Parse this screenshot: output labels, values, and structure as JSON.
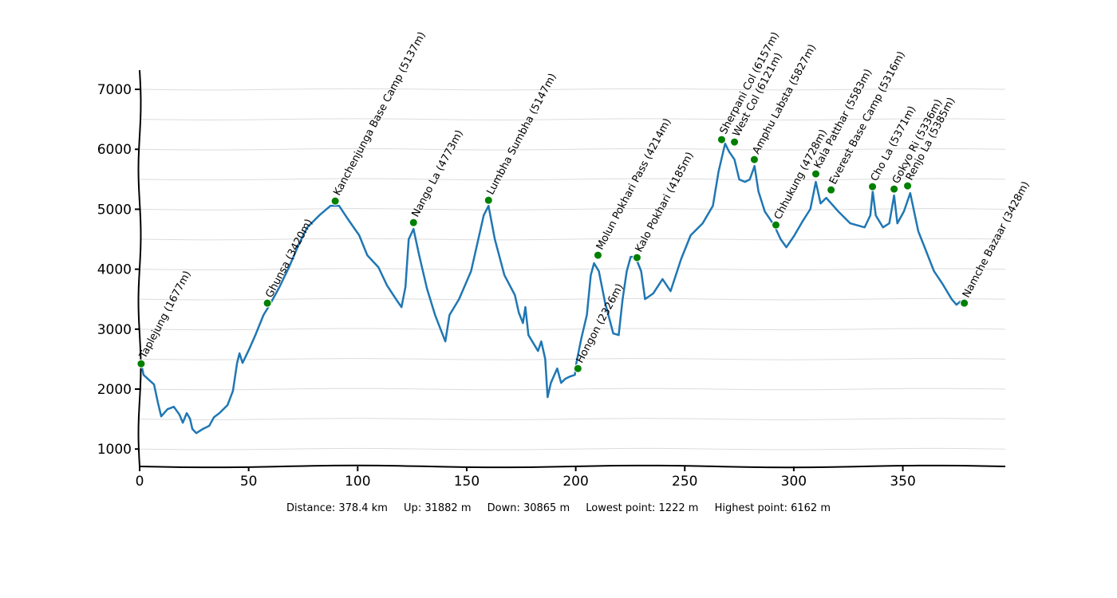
{
  "chart_data": {
    "type": "line",
    "title": "",
    "xlabel": "",
    "ylabel": "",
    "xlim": [
      0,
      397
    ],
    "ylim": [
      710,
      7320
    ],
    "x_ticks": [
      0,
      50,
      100,
      150,
      200,
      250,
      300,
      350
    ],
    "y_ticks": [
      1000,
      2000,
      3000,
      4000,
      5000,
      6000,
      7000
    ],
    "grid": "horizontal every 500 m",
    "line_color": "#1f77b4",
    "marker_color": "#008000",
    "series": [
      {
        "points": [
          [
            0.7,
            2423
          ],
          [
            1.8,
            2237
          ],
          [
            6.6,
            2078
          ],
          [
            8.4,
            1772
          ],
          [
            9.9,
            1545
          ],
          [
            12.8,
            1665
          ],
          [
            15.7,
            1705
          ],
          [
            18.3,
            1572
          ],
          [
            19.8,
            1439
          ],
          [
            21.6,
            1599
          ],
          [
            23.1,
            1506
          ],
          [
            24.2,
            1333
          ],
          [
            26,
            1266
          ],
          [
            28.9,
            1333
          ],
          [
            31.9,
            1386
          ],
          [
            34.1,
            1532
          ],
          [
            36.6,
            1599
          ],
          [
            40.3,
            1732
          ],
          [
            42.8,
            1971
          ],
          [
            44.7,
            2437
          ],
          [
            45.8,
            2596
          ],
          [
            47.2,
            2437
          ],
          [
            50.2,
            2663
          ],
          [
            53.1,
            2902
          ],
          [
            56.8,
            3235
          ],
          [
            59.7,
            3408
          ],
          [
            64.1,
            3701
          ],
          [
            68.5,
            4033
          ],
          [
            73.2,
            4432
          ],
          [
            76.9,
            4698
          ],
          [
            82.4,
            4898
          ],
          [
            87.5,
            5057
          ],
          [
            91.5,
            5057
          ],
          [
            95.6,
            4831
          ],
          [
            100.7,
            4565
          ],
          [
            104.4,
            4233
          ],
          [
            109.5,
            4033
          ],
          [
            113.5,
            3727
          ],
          [
            118.3,
            3461
          ],
          [
            120.1,
            3368
          ],
          [
            121.9,
            3701
          ],
          [
            123.4,
            4499
          ],
          [
            125.6,
            4672
          ],
          [
            128.2,
            4233
          ],
          [
            131.8,
            3674
          ],
          [
            135.5,
            3235
          ],
          [
            140.2,
            2796
          ],
          [
            142.1,
            3235
          ],
          [
            146.5,
            3501
          ],
          [
            152,
            3967
          ],
          [
            154.9,
            4432
          ],
          [
            157.8,
            4898
          ],
          [
            160,
            5057
          ],
          [
            162.9,
            4499
          ],
          [
            167.3,
            3900
          ],
          [
            172.1,
            3568
          ],
          [
            173.9,
            3275
          ],
          [
            175.8,
            3102
          ],
          [
            176.9,
            3368
          ],
          [
            178.3,
            2902
          ],
          [
            180.5,
            2769
          ],
          [
            182.7,
            2636
          ],
          [
            184.2,
            2796
          ],
          [
            186,
            2503
          ],
          [
            187.1,
            1865
          ],
          [
            188.6,
            2104
          ],
          [
            191.5,
            2344
          ],
          [
            193.3,
            2104
          ],
          [
            195.2,
            2171
          ],
          [
            197.4,
            2211
          ],
          [
            199.6,
            2237
          ],
          [
            200.3,
            2437
          ],
          [
            202.5,
            2836
          ],
          [
            205.1,
            3235
          ],
          [
            206.9,
            3900
          ],
          [
            208.4,
            4100
          ],
          [
            210.6,
            3967
          ],
          [
            213.5,
            3435
          ],
          [
            215,
            3235
          ],
          [
            217.2,
            2929
          ],
          [
            219.7,
            2902
          ],
          [
            221.5,
            3501
          ],
          [
            223.4,
            3967
          ],
          [
            225.2,
            4206
          ],
          [
            227.4,
            4206
          ],
          [
            230,
            3967
          ],
          [
            231.8,
            3501
          ],
          [
            235.5,
            3594
          ],
          [
            239.8,
            3834
          ],
          [
            243.5,
            3634
          ],
          [
            248.3,
            4166
          ],
          [
            252.7,
            4565
          ],
          [
            258.2,
            4765
          ],
          [
            262.9,
            5057
          ],
          [
            265.5,
            5629
          ],
          [
            268.5,
            6095
          ],
          [
            270.3,
            5962
          ],
          [
            272.8,
            5829
          ],
          [
            275,
            5496
          ],
          [
            277.6,
            5456
          ],
          [
            279.8,
            5496
          ],
          [
            282,
            5722
          ],
          [
            283.8,
            5297
          ],
          [
            286.7,
            4964
          ],
          [
            291.1,
            4725
          ],
          [
            294,
            4499
          ],
          [
            296.6,
            4366
          ],
          [
            300.3,
            4565
          ],
          [
            303.9,
            4791
          ],
          [
            307.6,
            5004
          ],
          [
            310.1,
            5456
          ],
          [
            312.3,
            5097
          ],
          [
            314.9,
            5190
          ],
          [
            320.4,
            4964
          ],
          [
            325.9,
            4765
          ],
          [
            332.5,
            4698
          ],
          [
            335.1,
            4898
          ],
          [
            336.2,
            5297
          ],
          [
            337.6,
            4898
          ],
          [
            340.9,
            4698
          ],
          [
            343.8,
            4765
          ],
          [
            346,
            5230
          ],
          [
            347.5,
            4765
          ],
          [
            350.5,
            4964
          ],
          [
            353.4,
            5270
          ],
          [
            357.1,
            4632
          ],
          [
            360,
            4366
          ],
          [
            364.3,
            3967
          ],
          [
            368,
            3767
          ],
          [
            372.4,
            3501
          ],
          [
            374.6,
            3408
          ],
          [
            376.4,
            3461
          ],
          [
            378.2,
            3434
          ]
        ]
      }
    ],
    "waypoints": [
      {
        "label": "Taplejung (1677m)",
        "x": 0.7,
        "y": 2423
      },
      {
        "label": "Ghunsa (3420m)",
        "x": 58.6,
        "y": 3434
      },
      {
        "label": "Kanchenjunga Base Camp (5137m)",
        "x": 89.7,
        "y": 5137
      },
      {
        "label": "Nango La (4773m)",
        "x": 125.6,
        "y": 4778
      },
      {
        "label": "Lumbha Sumbha (5147m)",
        "x": 160,
        "y": 5150
      },
      {
        "label": "Hongon (2326m)",
        "x": 201,
        "y": 2343
      },
      {
        "label": "Molun Pokhari Pass (4214m)",
        "x": 210.2,
        "y": 4233
      },
      {
        "label": "Kalo Pokhari (4185m)",
        "x": 228.1,
        "y": 4193
      },
      {
        "label": "Sherpani Col (6157m)",
        "x": 266.9,
        "y": 6162
      },
      {
        "label": "West Col (6121m)",
        "x": 272.8,
        "y": 6122
      },
      {
        "label": "Amphu Labsta (5827m)",
        "x": 281.9,
        "y": 5829
      },
      {
        "label": "Chhukung (4728m)",
        "x": 291.8,
        "y": 4738
      },
      {
        "label": "Kala Patthar (5583m)",
        "x": 310.1,
        "y": 5590
      },
      {
        "label": "Everest Base Camp (5316m)",
        "x": 317.1,
        "y": 5323
      },
      {
        "label": "Cho La (5371m)",
        "x": 336.1,
        "y": 5377
      },
      {
        "label": "Gokyo Ri (5336m)",
        "x": 346,
        "y": 5337
      },
      {
        "label": "Renjo La (5385m)",
        "x": 352.2,
        "y": 5390
      },
      {
        "label": "Namche Bazaar (3428m)",
        "x": 378.2,
        "y": 3434
      }
    ]
  },
  "stats": {
    "distance": "Distance: 378.4 km",
    "up": "Up: 31882 m",
    "down": "Down: 30865 m",
    "lowest": "Lowest point: 1222 m",
    "highest": "Highest point: 6162 m"
  }
}
